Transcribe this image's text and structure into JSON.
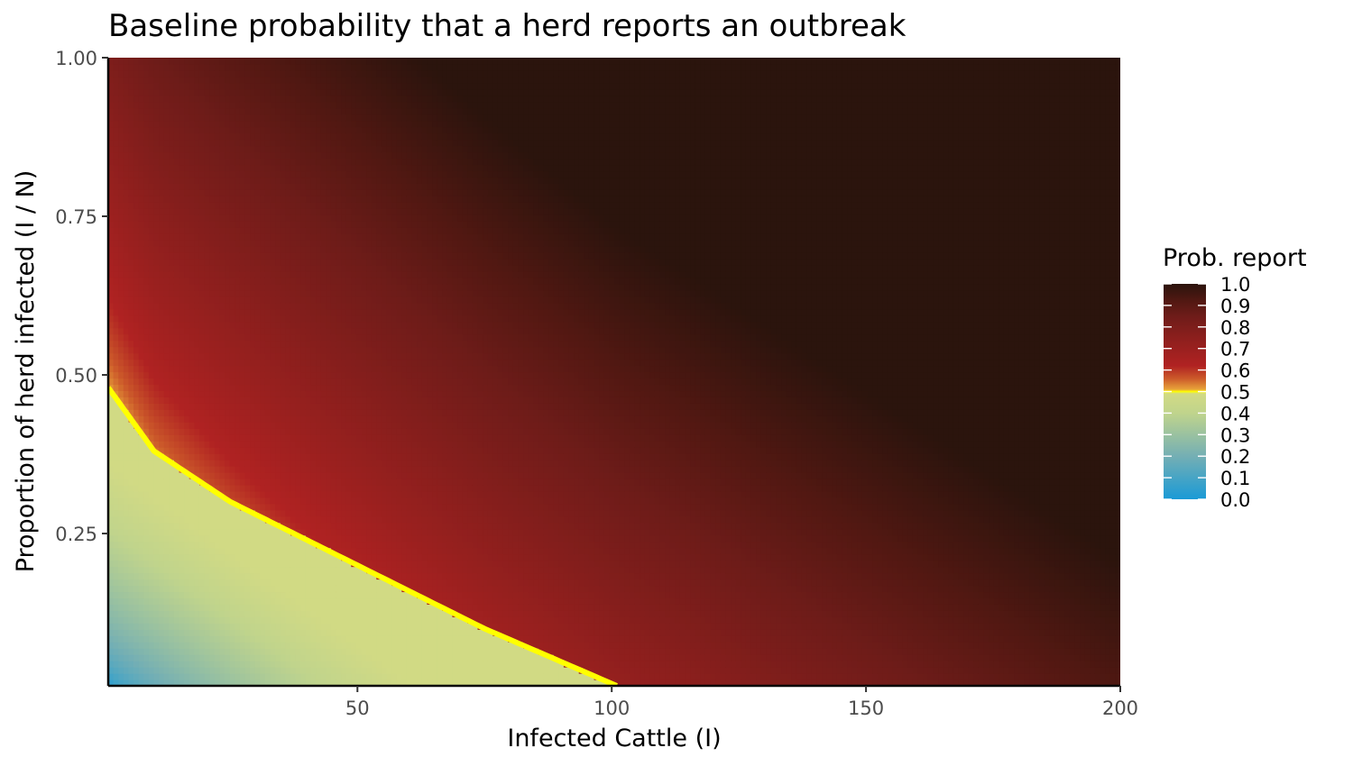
{
  "chart_data": {
    "type": "heatmap",
    "title": "Baseline probability that a herd reports an outbreak",
    "xlabel": "Infected Cattle (I)",
    "ylabel": "Proportion of herd infected (I / N)",
    "xlim": [
      1,
      200
    ],
    "ylim": [
      0.01,
      1.0
    ],
    "x_ticks": [
      {
        "value": 50,
        "label": "50"
      },
      {
        "value": 100,
        "label": "100"
      },
      {
        "value": 150,
        "label": "150"
      },
      {
        "value": 200,
        "label": "200"
      }
    ],
    "y_ticks": [
      {
        "value": 0.25,
        "label": "0.25"
      },
      {
        "value": 0.5,
        "label": "0.50"
      },
      {
        "value": 0.75,
        "label": "0.75"
      },
      {
        "value": 1.0,
        "label": "1.00"
      }
    ],
    "grid": false,
    "legend": {
      "title": "Prob. report",
      "position": "right",
      "range": [
        0.0,
        1.0
      ],
      "labels": [
        "1.0",
        "0.9",
        "0.8",
        "0.7",
        "0.6",
        "0.5",
        "0.4",
        "0.3",
        "0.2",
        "0.1",
        "0.0"
      ]
    },
    "color_stops": [
      {
        "value": 0.0,
        "color": "#1a9ad6"
      },
      {
        "value": 0.2,
        "color": "#74afb4"
      },
      {
        "value": 0.4,
        "color": "#c0d48c"
      },
      {
        "value": 0.49,
        "color": "#d2da84"
      },
      {
        "value": 0.5,
        "color": "#ffff00"
      },
      {
        "value": 0.51,
        "color": "#e8a33a"
      },
      {
        "value": 0.56,
        "color": "#cc5a2a"
      },
      {
        "value": 0.62,
        "color": "#b02222"
      },
      {
        "value": 0.75,
        "color": "#8c1f1d"
      },
      {
        "value": 0.85,
        "color": "#6e1c19"
      },
      {
        "value": 0.92,
        "color": "#521812"
      },
      {
        "value": 1.0,
        "color": "#2b140d"
      }
    ],
    "threshold": 0.5,
    "threshold_color": "#ffff00",
    "corner_values": {
      "x1_y0.01": 0.0,
      "x200_y1.00": 1.0
    },
    "threshold_contour": [
      {
        "x": 1,
        "y": 0.48
      },
      {
        "x": 10,
        "y": 0.38
      },
      {
        "x": 25,
        "y": 0.3
      },
      {
        "x": 50,
        "y": 0.2
      },
      {
        "x": 75,
        "y": 0.1
      },
      {
        "x": 101,
        "y": 0.01
      }
    ]
  }
}
